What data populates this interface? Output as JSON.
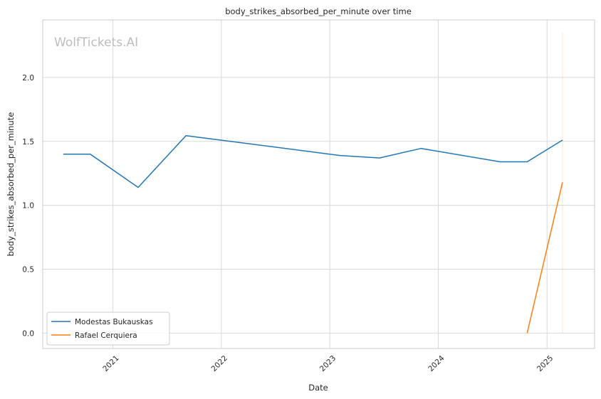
{
  "chart_data": {
    "type": "line",
    "title": "body_strikes_absorbed_per_minute over time",
    "xlabel": "Date",
    "ylabel": "body_strikes_absorbed_per_minute",
    "watermark": "WolfTickets.AI",
    "x_ticks": [
      "2021",
      "2022",
      "2023",
      "2024",
      "2025"
    ],
    "y_ticks": [
      "0.0",
      "0.5",
      "1.0",
      "1.5",
      "2.0"
    ],
    "xlim": [
      "2020-05-10",
      "2025-06-10"
    ],
    "ylim": [
      -0.12,
      2.45
    ],
    "grid": true,
    "legend_position": "bottom-left",
    "series": [
      {
        "name": "Modestas Bukauskas",
        "color": "#1f77b4",
        "x": [
          "2020-07-18",
          "2020-10-17",
          "2021-03-27",
          "2021-09-04",
          "2023-02-04",
          "2023-06-17",
          "2023-11-04",
          "2024-07-27",
          "2024-10-26",
          "2025-02-22"
        ],
        "y": [
          1.4,
          1.4,
          1.14,
          1.545,
          1.39,
          1.37,
          1.445,
          1.34,
          1.34,
          1.51
        ]
      },
      {
        "name": "Rafael Cerquiera",
        "color": "#ff7f0e",
        "x": [
          "2024-10-26",
          "2025-02-22"
        ],
        "y": [
          0.0,
          1.18
        ]
      }
    ],
    "annotation_band": {
      "x": "2025-02-22",
      "y_range": [
        0.0,
        2.35
      ],
      "color": "#ff7f0e"
    }
  }
}
